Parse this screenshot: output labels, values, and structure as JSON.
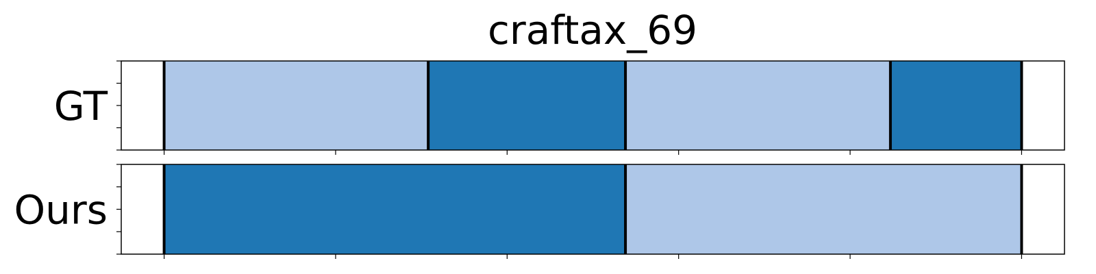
{
  "chart_data": {
    "type": "bar",
    "title": "craftax_69",
    "x_range": [
      -0.5,
      10.5
    ],
    "rows": [
      {
        "label": "GT",
        "segments": [
          {
            "start": 0.0,
            "end": 3.08,
            "color": "#aec7e8"
          },
          {
            "start": 3.08,
            "end": 5.38,
            "color": "#1f77b4"
          },
          {
            "start": 5.38,
            "end": 8.47,
            "color": "#aec7e8"
          },
          {
            "start": 8.47,
            "end": 10.0,
            "color": "#1f77b4"
          }
        ],
        "boundaries": [
          0.0,
          3.08,
          5.38,
          8.47,
          10.0
        ]
      },
      {
        "label": "Ours",
        "segments": [
          {
            "start": 0.0,
            "end": 5.38,
            "color": "#1f77b4"
          },
          {
            "start": 5.38,
            "end": 10.0,
            "color": "#aec7e8"
          }
        ],
        "boundaries": [
          0.0,
          5.38,
          10.0
        ]
      }
    ],
    "x_ticks": [
      0,
      2,
      4,
      6,
      8,
      10
    ],
    "tick_labels_shown": false,
    "grid": false,
    "legend": "none"
  }
}
